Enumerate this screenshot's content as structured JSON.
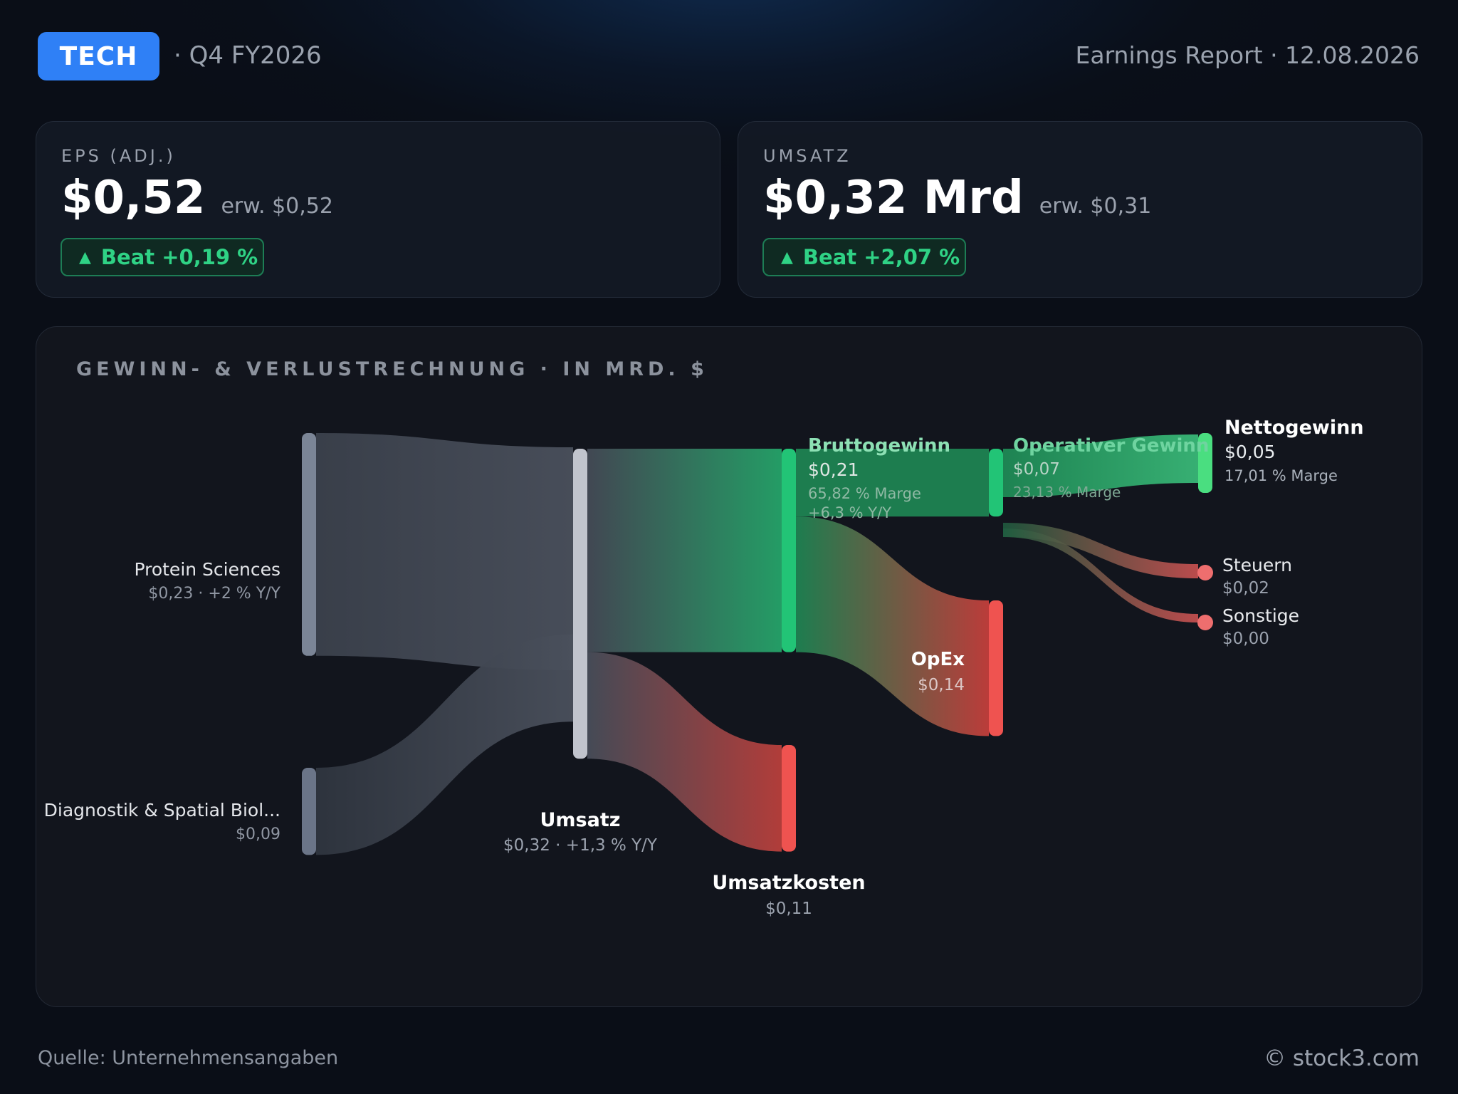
{
  "header": {
    "ticker": "TECH",
    "period": "· Q4 FY2026",
    "report": "Earnings Report · 12.08.2026"
  },
  "cards": {
    "eps": {
      "label": "EPS (ADJ.)",
      "value": "$0,52",
      "expected": "erw. $0,52",
      "beat": "Beat +0,19 %"
    },
    "revenue": {
      "label": "UMSATZ",
      "value": "$0,32 Mrd",
      "expected": "erw. $0,31",
      "beat": "Beat +2,07 %"
    }
  },
  "colors": {
    "segment_node": "#7b8596",
    "revenue_node": "#c1c4cd",
    "profit": "#22c476",
    "net_profit": "#4ade80",
    "cost": "#ef5350",
    "tax": "#ee6e6e"
  },
  "icons": {
    "beat": "triangle-up-icon"
  },
  "chart_data": {
    "type": "sankey",
    "title": "GEWINN- & VERLUSTRECHNUNG · IN MRD. $",
    "nodes": [
      {
        "id": "protein",
        "name": "Protein Sciences",
        "value": 0.23,
        "value_label": "$0,23 · +2 % Y/Y",
        "notes": []
      },
      {
        "id": "diag",
        "name": "Diagnostik & Spatial Biol...",
        "value": 0.09,
        "value_label": "$0,09",
        "notes": []
      },
      {
        "id": "umsatz",
        "name": "Umsatz",
        "value": 0.32,
        "value_label": "$0,32 · +1,3 % Y/Y",
        "notes": []
      },
      {
        "id": "cogs",
        "name": "Umsatzkosten",
        "value": 0.11,
        "value_label": "$0,11",
        "notes": []
      },
      {
        "id": "gross",
        "name": "Bruttogewinn",
        "value": 0.21,
        "value_label": "$0,21",
        "notes": [
          "65,82 % Marge",
          "+6,3 % Y/Y"
        ]
      },
      {
        "id": "opex",
        "name": "OpEx",
        "value": 0.14,
        "value_label": "$0,14",
        "notes": []
      },
      {
        "id": "opinc",
        "name": "Operativer Gewinn",
        "value": 0.07,
        "value_label": "$0,07",
        "notes": [
          "23,13 % Marge"
        ]
      },
      {
        "id": "net",
        "name": "Nettogewinn",
        "value": 0.05,
        "value_label": "$0,05",
        "notes": [
          "17,01 % Marge"
        ]
      },
      {
        "id": "tax",
        "name": "Steuern",
        "value": 0.02,
        "value_label": "$0,02",
        "notes": []
      },
      {
        "id": "other",
        "name": "Sonstige",
        "value": 0.0,
        "value_label": "$0,00",
        "notes": []
      }
    ],
    "links": [
      {
        "source": "protein",
        "target": "umsatz",
        "value": 0.23
      },
      {
        "source": "diag",
        "target": "umsatz",
        "value": 0.09
      },
      {
        "source": "umsatz",
        "target": "gross",
        "value": 0.21
      },
      {
        "source": "umsatz",
        "target": "cogs",
        "value": 0.11
      },
      {
        "source": "gross",
        "target": "opinc",
        "value": 0.07
      },
      {
        "source": "gross",
        "target": "opex",
        "value": 0.14
      },
      {
        "source": "opinc",
        "target": "net",
        "value": 0.05
      },
      {
        "source": "opinc",
        "target": "tax",
        "value": 0.02
      },
      {
        "source": "opinc",
        "target": "other",
        "value": 0.0
      }
    ]
  },
  "footer": {
    "source": "Quelle: Unternehmensangaben",
    "copyright": "© stock3.com"
  }
}
